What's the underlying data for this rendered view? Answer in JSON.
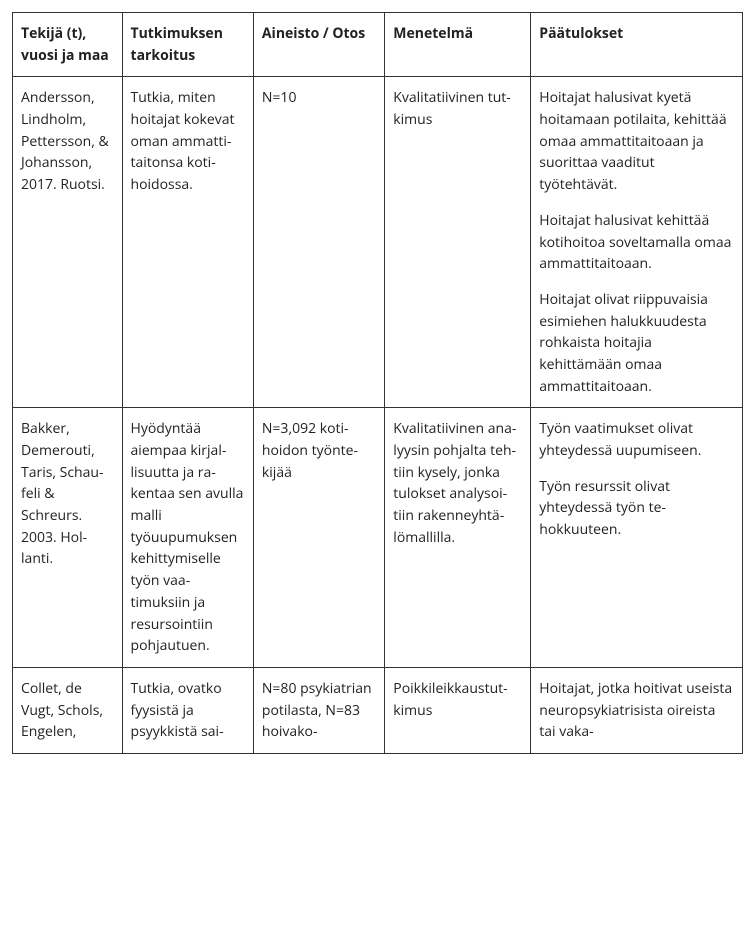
{
  "table": {
    "background_color": "#ffffff",
    "border_color": "#333333",
    "text_color": "#222222",
    "font_size_pt": 11,
    "header_font_weight": 700,
    "line_height": 1.55,
    "column_widths_pct": [
      15,
      18,
      18,
      20,
      29
    ],
    "columns": [
      "Tekijä (t), vuosi ja maa",
      "Tutkimuksen tarkoitus",
      "Aineisto / Otos",
      "Menetelmä",
      "Päätulokset"
    ],
    "rows": [
      {
        "author": "Andersson, Lindholm, Pettersson, & Johansson, 2017. Ruotsi.",
        "purpose": "Tutkia, miten hoitajat kokevat oman ammatti­taitonsa koti­hoidossa.",
        "sample": "N=10",
        "method": "Kvalitatiivinen tut­kimus",
        "results": [
          "Hoitajat halusivat kyetä hoitamaan potilaita, kehittää omaa ammat­titaitoaan ja suorittaa vaaditut työtehtävät.",
          "Hoitajat halusivat ke­hittää kotihoitoa sovel­tamalla omaa ammatti­taitoaan.",
          "Hoitajat olivat riippu­vaisia esimiehen ha­lukkuudesta rohkaista hoitajia kehittämään omaa ammattitaitoaan."
        ]
      },
      {
        "author": "Bakker, Demerouti, Taris, Schau­feli & Schreurs. 2003. Hol­lanti.",
        "purpose": "Hyödyntää aiempaa kirjal­lisuutta ja ra­kentaa sen avulla malli työuupumuk­sen kehittymi­selle työn vaa­timuksiin ja resursointiin pohjautuen.",
        "sample": "N=3,092 koti­hoidon työnte­kijää",
        "method": "Kvalitatiivinen ana­lyysin pohjalta teh­tiin kysely, jonka tulokset analysoi­tiin rakenneyhtä­lömallilla.",
        "results": [
          "Työn vaatimukset oli­vat yhteydessä uupu­miseen.",
          "Työn resurssit olivat yhteydessä työn te­hokkuuteen."
        ]
      },
      {
        "author": "Collet, de Vugt, Schols, Engelen,",
        "purpose": "Tutkia, ovatko fyysistä ja psyykkistä sai-",
        "sample": "N=80 psykiatri­an potilasta, N=83 hoivako-",
        "method": "Poikkileikkaustut­kimus",
        "results": [
          "Hoitajat, jotka hoitivat useista neuropsykiatri­sista oireista tai vaka-"
        ]
      }
    ]
  }
}
